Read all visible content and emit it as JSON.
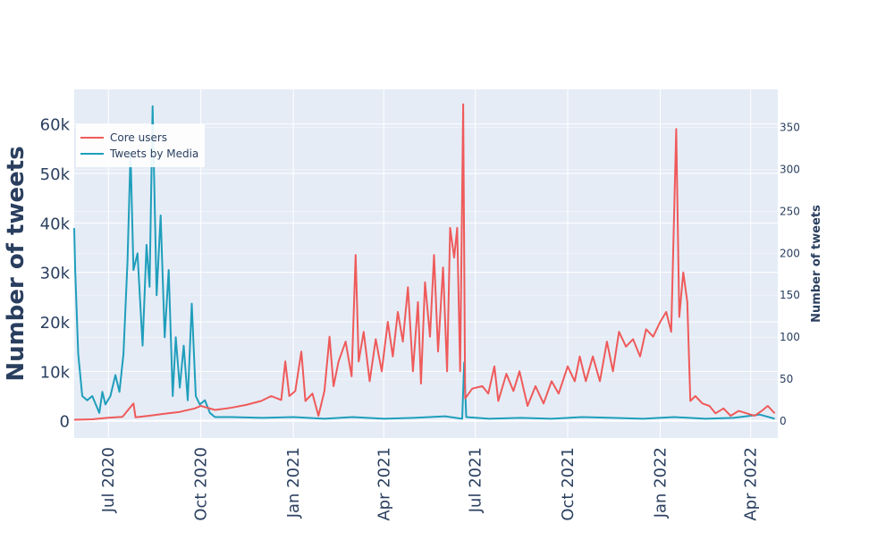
{
  "chart_data": {
    "type": "line",
    "title": "",
    "xlabel": "",
    "ylabel_left": "Number of tweets",
    "ylabel_right": "Number of tweets",
    "x_range": [
      "2020-05-28",
      "2022-04-28"
    ],
    "x_ticks": [
      {
        "date": "2020-07-01",
        "label": "Jul 2020"
      },
      {
        "date": "2020-10-01",
        "label": "Oct 2020"
      },
      {
        "date": "2021-01-01",
        "label": "Jan 2021"
      },
      {
        "date": "2021-04-01",
        "label": "Apr 2021"
      },
      {
        "date": "2021-07-01",
        "label": "Jul 2021"
      },
      {
        "date": "2021-10-01",
        "label": "Oct 2021"
      },
      {
        "date": "2022-01-01",
        "label": "Jan 2022"
      },
      {
        "date": "2022-04-01",
        "label": "Apr 2022"
      }
    ],
    "y_left": {
      "range": [
        -3500,
        67000
      ],
      "ticks": [
        {
          "value": 0,
          "label": "0"
        },
        {
          "value": 10000,
          "label": "10k"
        },
        {
          "value": 20000,
          "label": "20k"
        },
        {
          "value": 30000,
          "label": "30k"
        },
        {
          "value": 40000,
          "label": "40k"
        },
        {
          "value": 50000,
          "label": "50k"
        },
        {
          "value": 60000,
          "label": "60k"
        }
      ]
    },
    "y_right": {
      "range": [
        -20,
        395
      ],
      "ticks": [
        {
          "value": 0,
          "label": "0"
        },
        {
          "value": 50,
          "label": "50"
        },
        {
          "value": 100,
          "label": "100"
        },
        {
          "value": 150,
          "label": "150"
        },
        {
          "value": 200,
          "label": "200"
        },
        {
          "value": 250,
          "label": "250"
        },
        {
          "value": 300,
          "label": "300"
        },
        {
          "value": 350,
          "label": "350"
        }
      ]
    },
    "grid": true,
    "legend_position": "top-left",
    "series": [
      {
        "name": "Core users",
        "axis": "left",
        "color": "#ef5a5a",
        "points": [
          [
            "2020-05-28",
            200
          ],
          [
            "2020-06-15",
            300
          ],
          [
            "2020-07-01",
            600
          ],
          [
            "2020-07-15",
            800
          ],
          [
            "2020-07-26",
            3500
          ],
          [
            "2020-07-28",
            700
          ],
          [
            "2020-08-10",
            1000
          ],
          [
            "2020-08-25",
            1400
          ],
          [
            "2020-09-10",
            1800
          ],
          [
            "2020-09-25",
            2500
          ],
          [
            "2020-10-01",
            3000
          ],
          [
            "2020-10-15",
            2200
          ],
          [
            "2020-10-30",
            2600
          ],
          [
            "2020-11-15",
            3200
          ],
          [
            "2020-11-30",
            4000
          ],
          [
            "2020-12-10",
            5000
          ],
          [
            "2020-12-20",
            4200
          ],
          [
            "2020-12-24",
            12000
          ],
          [
            "2020-12-28",
            5000
          ],
          [
            "2021-01-03",
            6000
          ],
          [
            "2021-01-09",
            14000
          ],
          [
            "2021-01-13",
            4000
          ],
          [
            "2021-01-20",
            5500
          ],
          [
            "2021-01-26",
            1000
          ],
          [
            "2021-02-01",
            6000
          ],
          [
            "2021-02-06",
            17000
          ],
          [
            "2021-02-10",
            7000
          ],
          [
            "2021-02-15",
            12000
          ],
          [
            "2021-02-22",
            16000
          ],
          [
            "2021-02-28",
            9000
          ],
          [
            "2021-03-04",
            33500
          ],
          [
            "2021-03-07",
            12000
          ],
          [
            "2021-03-12",
            18000
          ],
          [
            "2021-03-18",
            8000
          ],
          [
            "2021-03-24",
            16500
          ],
          [
            "2021-03-30",
            10000
          ],
          [
            "2021-04-05",
            20000
          ],
          [
            "2021-04-10",
            13000
          ],
          [
            "2021-04-15",
            22000
          ],
          [
            "2021-04-20",
            16000
          ],
          [
            "2021-04-25",
            27000
          ],
          [
            "2021-04-30",
            10000
          ],
          [
            "2021-05-05",
            24000
          ],
          [
            "2021-05-08",
            7500
          ],
          [
            "2021-05-12",
            28000
          ],
          [
            "2021-05-17",
            17000
          ],
          [
            "2021-05-21",
            33500
          ],
          [
            "2021-05-25",
            14000
          ],
          [
            "2021-05-30",
            31000
          ],
          [
            "2021-06-03",
            10000
          ],
          [
            "2021-06-06",
            39000
          ],
          [
            "2021-06-10",
            33000
          ],
          [
            "2021-06-13",
            39000
          ],
          [
            "2021-06-16",
            10000
          ],
          [
            "2021-06-19",
            64000
          ],
          [
            "2021-06-21",
            4500
          ],
          [
            "2021-06-28",
            6500
          ],
          [
            "2021-07-08",
            7000
          ],
          [
            "2021-07-14",
            5500
          ],
          [
            "2021-07-20",
            11000
          ],
          [
            "2021-07-24",
            4000
          ],
          [
            "2021-08-01",
            9500
          ],
          [
            "2021-08-08",
            6000
          ],
          [
            "2021-08-14",
            10000
          ],
          [
            "2021-08-22",
            3000
          ],
          [
            "2021-08-30",
            7000
          ],
          [
            "2021-09-07",
            3500
          ],
          [
            "2021-09-15",
            8000
          ],
          [
            "2021-09-22",
            5500
          ],
          [
            "2021-10-01",
            11000
          ],
          [
            "2021-10-08",
            8000
          ],
          [
            "2021-10-13",
            13000
          ],
          [
            "2021-10-19",
            8000
          ],
          [
            "2021-10-26",
            13000
          ],
          [
            "2021-11-02",
            8000
          ],
          [
            "2021-11-09",
            16000
          ],
          [
            "2021-11-15",
            10000
          ],
          [
            "2021-11-21",
            18000
          ],
          [
            "2021-11-28",
            15000
          ],
          [
            "2021-12-05",
            16500
          ],
          [
            "2021-12-12",
            13000
          ],
          [
            "2021-12-18",
            18500
          ],
          [
            "2021-12-25",
            17000
          ],
          [
            "2022-01-01",
            20000
          ],
          [
            "2022-01-07",
            22000
          ],
          [
            "2022-01-12",
            18000
          ],
          [
            "2022-01-17",
            59000
          ],
          [
            "2022-01-20",
            21000
          ],
          [
            "2022-01-24",
            30000
          ],
          [
            "2022-01-28",
            24000
          ],
          [
            "2022-01-31",
            4000
          ],
          [
            "2022-02-05",
            5000
          ],
          [
            "2022-02-12",
            3500
          ],
          [
            "2022-02-19",
            3000
          ],
          [
            "2022-02-25",
            1500
          ],
          [
            "2022-03-05",
            2500
          ],
          [
            "2022-03-12",
            1000
          ],
          [
            "2022-03-20",
            2000
          ],
          [
            "2022-03-28",
            1500
          ],
          [
            "2022-04-05",
            1000
          ],
          [
            "2022-04-12",
            2000
          ],
          [
            "2022-04-18",
            3000
          ],
          [
            "2022-04-25",
            1500
          ]
        ]
      },
      {
        "name": "Tweets by Media",
        "axis": "right",
        "color": "#1f9ebb",
        "points": [
          [
            "2020-05-28",
            230
          ],
          [
            "2020-05-29",
            180
          ],
          [
            "2020-06-01",
            80
          ],
          [
            "2020-06-05",
            30
          ],
          [
            "2020-06-10",
            25
          ],
          [
            "2020-06-15",
            30
          ],
          [
            "2020-06-22",
            10
          ],
          [
            "2020-06-25",
            35
          ],
          [
            "2020-06-28",
            20
          ],
          [
            "2020-07-03",
            30
          ],
          [
            "2020-07-08",
            55
          ],
          [
            "2020-07-12",
            35
          ],
          [
            "2020-07-16",
            80
          ],
          [
            "2020-07-20",
            190
          ],
          [
            "2020-07-23",
            320
          ],
          [
            "2020-07-26",
            180
          ],
          [
            "2020-07-30",
            200
          ],
          [
            "2020-08-04",
            90
          ],
          [
            "2020-08-08",
            210
          ],
          [
            "2020-08-11",
            160
          ],
          [
            "2020-08-14",
            375
          ],
          [
            "2020-08-18",
            150
          ],
          [
            "2020-08-22",
            245
          ],
          [
            "2020-08-26",
            100
          ],
          [
            "2020-08-30",
            180
          ],
          [
            "2020-09-03",
            30
          ],
          [
            "2020-09-06",
            100
          ],
          [
            "2020-09-10",
            40
          ],
          [
            "2020-09-14",
            90
          ],
          [
            "2020-09-18",
            25
          ],
          [
            "2020-09-22",
            140
          ],
          [
            "2020-09-26",
            30
          ],
          [
            "2020-09-30",
            20
          ],
          [
            "2020-10-05",
            25
          ],
          [
            "2020-10-10",
            10
          ],
          [
            "2020-10-15",
            5
          ],
          [
            "2020-11-01",
            5
          ],
          [
            "2020-12-01",
            4
          ],
          [
            "2021-01-01",
            5
          ],
          [
            "2021-02-01",
            3
          ],
          [
            "2021-03-01",
            5
          ],
          [
            "2021-04-01",
            3
          ],
          [
            "2021-05-01",
            4
          ],
          [
            "2021-06-01",
            6
          ],
          [
            "2021-06-18",
            3
          ],
          [
            "2021-06-20",
            70
          ],
          [
            "2021-06-22",
            5
          ],
          [
            "2021-07-15",
            3
          ],
          [
            "2021-08-15",
            4
          ],
          [
            "2021-09-15",
            3
          ],
          [
            "2021-10-15",
            5
          ],
          [
            "2021-11-15",
            4
          ],
          [
            "2021-12-15",
            3
          ],
          [
            "2022-01-15",
            5
          ],
          [
            "2022-02-15",
            3
          ],
          [
            "2022-03-15",
            4
          ],
          [
            "2022-04-10",
            8
          ],
          [
            "2022-04-25",
            3
          ]
        ]
      }
    ]
  }
}
